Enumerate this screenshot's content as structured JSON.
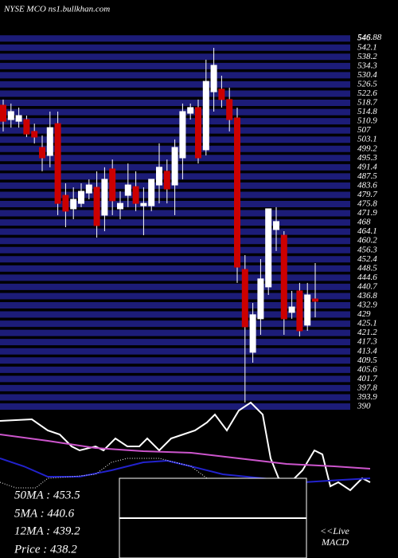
{
  "chart_data": {
    "type": "candlestick",
    "title": "NYSE MCO ns1.bullkhan.com",
    "ylim": [
      390,
      546.88
    ],
    "yticks": [
      390,
      393.9,
      397.8,
      401.7,
      405.6,
      409.5,
      413.4,
      417.3,
      421.2,
      425.1,
      429,
      432.9,
      436.8,
      440.7,
      444.6,
      448.5,
      452.4,
      456.3,
      460.2,
      464.1,
      468,
      471.9,
      475.8,
      479.7,
      483.6,
      487.5,
      491.4,
      495.3,
      499.2,
      503.1,
      507,
      510.9,
      514.8,
      518.7,
      522.6,
      526.5,
      530.4,
      534.3,
      538.2,
      542.1,
      546,
      546.88
    ],
    "grid": true,
    "grid_color": "#1c1c78",
    "up_color": "#ffffff",
    "down_color": "#cc0000",
    "open": [
      517.7,
      511.6,
      510.9,
      511.6,
      506.6,
      499.8,
      496.4,
      509.9,
      479.5,
      473.8,
      476.1,
      480.5,
      482.9,
      471.1,
      490.7,
      473.8,
      479.5,
      483.2,
      475.1,
      475.1,
      483.9,
      489.7,
      483.9,
      495.4,
      514.3,
      516.7,
      498.8,
      523.4,
      524.5,
      520.1,
      512.3,
      448.1,
      413.0,
      427.2,
      440.7,
      465.0,
      462.6,
      429.9,
      439.0,
      424.5,
      435.6
    ],
    "high": [
      520.1,
      518.4,
      516.7,
      513.3,
      509.9,
      504.9,
      515.0,
      515.0,
      484.6,
      482.9,
      484.6,
      486.3,
      489.7,
      491.4,
      494.7,
      481.2,
      493.0,
      489.7,
      482.9,
      486.3,
      501.5,
      494.7,
      503.2,
      518.4,
      518.4,
      520.1,
      537.0,
      542.0,
      530.2,
      525.1,
      516.7,
      454.2,
      433.9,
      452.5,
      473.8,
      474.5,
      464.3,
      439.0,
      442.4,
      442.4,
      450.8
    ],
    "low": [
      506.6,
      508.2,
      508.2,
      504.2,
      501.5,
      489.7,
      491.4,
      471.1,
      466.0,
      469.4,
      474.5,
      477.8,
      461.6,
      464.3,
      471.1,
      469.4,
      474.5,
      472.8,
      462.6,
      472.8,
      476.1,
      476.1,
      471.1,
      486.3,
      511.6,
      493.0,
      496.4,
      515.0,
      516.7,
      506.6,
      442.4,
      391.7,
      408.6,
      420.4,
      437.3,
      455.9,
      420.4,
      427.2,
      419.7,
      422.1,
      427.8
    ],
    "close": [
      510.9,
      515.0,
      513.3,
      505.5,
      504.2,
      495.4,
      508.2,
      476.1,
      472.8,
      477.8,
      481.2,
      483.9,
      466.7,
      486.3,
      477.2,
      476.1,
      483.9,
      476.1,
      476.1,
      486.3,
      491.4,
      482.2,
      499.8,
      515.0,
      516.7,
      495.4,
      527.8,
      534.6,
      520.1,
      511.6,
      449.1,
      423.8,
      428.9,
      444.1,
      473.8,
      468.4,
      427.2,
      432.2,
      422.1,
      437.3,
      434.6
    ],
    "indicator_panel": {
      "ylim": [
        0,
        100
      ],
      "xlim": [
        0,
        470
      ],
      "lines": [
        {
          "color": "#ffffff",
          "dashed": false,
          "x": [
            0,
            40,
            60,
            75,
            90,
            100,
            120,
            130,
            145,
            160,
            175,
            185,
            200,
            215,
            230,
            245,
            260,
            270,
            285,
            300,
            315,
            330,
            340,
            350,
            365,
            380,
            395,
            405,
            415,
            425,
            440,
            455,
            465
          ],
          "values": [
            86,
            87,
            80,
            77.5,
            70,
            67.5,
            70,
            67.5,
            75,
            70,
            70,
            75,
            67.5,
            75,
            77.5,
            80,
            85,
            90,
            80,
            92.5,
            97.5,
            90,
            62.5,
            50,
            47.5,
            55,
            67.5,
            65,
            45,
            47.5,
            42.5,
            50,
            47.5
          ]
        },
        {
          "color": "#cc55cc",
          "dashed": false,
          "x": [
            0,
            60,
            120,
            180,
            240,
            300,
            360,
            420,
            465
          ],
          "values": [
            77.5,
            73.5,
            69,
            67,
            66,
            62.5,
            59,
            57.5,
            56
          ]
        },
        {
          "color": "#2222cc",
          "dashed": false,
          "x": [
            0,
            30,
            60,
            100,
            140,
            180,
            210,
            240,
            280,
            330,
            380,
            430,
            465
          ],
          "values": [
            62.5,
            57.5,
            51,
            51,
            55,
            60,
            61,
            57.5,
            52.5,
            50,
            47.5,
            49,
            50
          ]
        },
        {
          "color": "#ffffff",
          "dashed": true,
          "x": [
            0,
            20,
            45,
            60,
            90,
            120,
            140,
            160,
            200,
            240,
            260
          ],
          "values": [
            47.5,
            44,
            44,
            50,
            51,
            52.5,
            60,
            62.5,
            62.5,
            57.5,
            50
          ]
        }
      ]
    },
    "stats": [
      "50MA : 453.5",
      "5MA : 440.6",
      "12MA : 439.2",
      "Price : 438.2"
    ],
    "live_label": "<<Live",
    "macd_label": "MACD"
  }
}
